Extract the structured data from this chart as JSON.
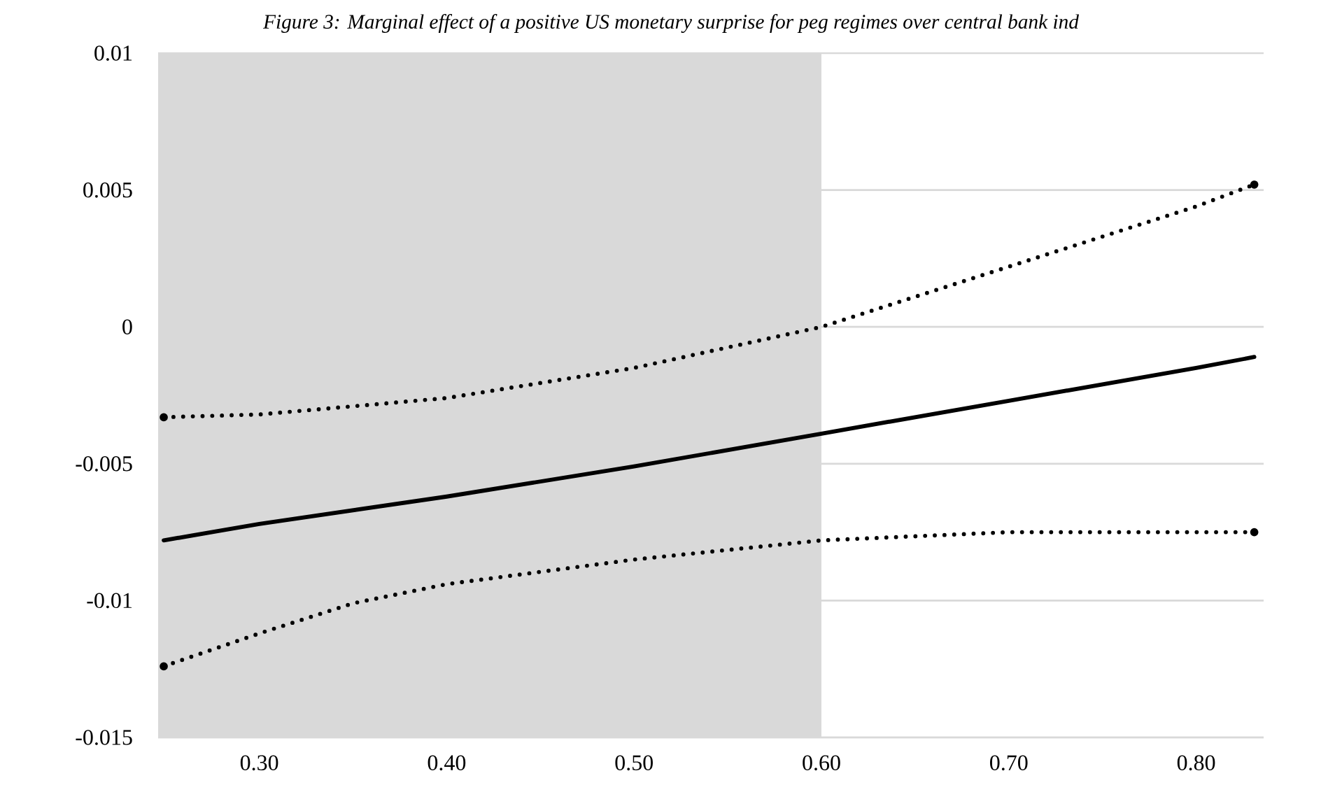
{
  "chart_data": {
    "type": "line",
    "title": "Figure 3: Marginal effect of a positive US monetary surprise for peg regimes over central bank ind",
    "series": [
      {
        "color": "#000000",
        "line_style": "solid",
        "x": [
          0.249,
          0.3,
          0.4,
          0.5,
          0.6,
          0.7,
          0.8,
          0.831
        ],
        "values": [
          -0.0078,
          -0.0072,
          -0.0062,
          -0.0051,
          -0.0039,
          -0.0027,
          -0.0015,
          -0.0011
        ]
      },
      {
        "color": "#000000",
        "line_style": "dotted",
        "x": [
          0.249,
          0.3,
          0.4,
          0.5,
          0.6,
          0.7,
          0.8,
          0.831
        ],
        "values": [
          -0.0033,
          -0.0032,
          -0.0026,
          -0.0015,
          0.0,
          0.0022,
          0.0044,
          0.0052
        ]
      },
      {
        "color": "#000000",
        "line_style": "dotted",
        "x": [
          0.249,
          0.3,
          0.35,
          0.4,
          0.5,
          0.6,
          0.7,
          0.831
        ],
        "values": [
          -0.0124,
          -0.0112,
          -0.0101,
          -0.0094,
          -0.0085,
          -0.0078,
          -0.0075,
          -0.0075
        ]
      }
    ],
    "xlim": [
      0.246,
      0.836
    ],
    "ylim": [
      -0.015,
      0.01
    ],
    "xticks": [
      {
        "value": 0.3,
        "label": "0.30"
      },
      {
        "value": 0.4,
        "label": "0.40"
      },
      {
        "value": 0.5,
        "label": "0.50"
      },
      {
        "value": 0.6,
        "label": "0.60"
      },
      {
        "value": 0.7,
        "label": "0.70"
      },
      {
        "value": 0.8,
        "label": "0.80"
      }
    ],
    "yticks": [
      -0.015,
      -0.01,
      -0.005,
      0,
      0.005,
      0.01
    ],
    "grid": "y",
    "bands": [
      {
        "axis": "x",
        "from": 0.246,
        "to": 0.6,
        "color": "#d9d9d9"
      }
    ]
  }
}
